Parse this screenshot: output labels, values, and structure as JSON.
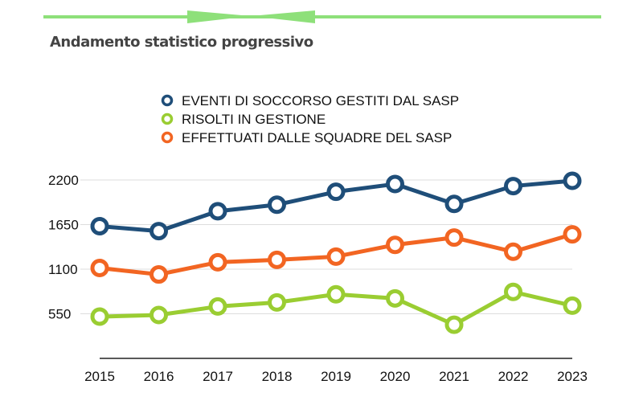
{
  "header": {
    "title": "Andamento statistico progressivo"
  },
  "colors": {
    "accent_line": "#8ee07a"
  },
  "chart_data": {
    "type": "line",
    "title": "",
    "xlabel": "",
    "ylabel": "",
    "categories": [
      "2015",
      "2016",
      "2017",
      "2018",
      "2019",
      "2020",
      "2021",
      "2022",
      "2023"
    ],
    "yticks": [
      550,
      1100,
      1650,
      2200
    ],
    "ylim": [
      0,
      2200
    ],
    "grid": true,
    "legend_position": "top",
    "series": [
      {
        "name": "EVENTI DI SOCCORSO GESTITI DAL SASP",
        "color": "#1f4e79",
        "values": [
          1630,
          1570,
          1815,
          1895,
          2055,
          2150,
          1905,
          2125,
          2190
        ]
      },
      {
        "name": "RISOLTI IN GESTIONE",
        "color": "#9acd32",
        "values": [
          515,
          535,
          640,
          690,
          790,
          740,
          415,
          820,
          650
        ]
      },
      {
        "name": "EFFETTUATI DALLE SQUADRE DEL SASP",
        "color": "#f26522",
        "values": [
          1115,
          1035,
          1185,
          1215,
          1255,
          1400,
          1490,
          1315,
          1530
        ]
      }
    ]
  }
}
